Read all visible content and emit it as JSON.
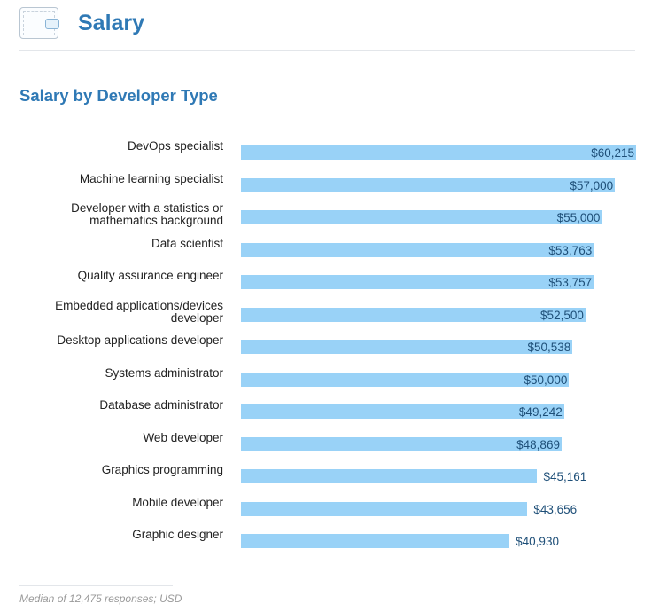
{
  "header": {
    "title": "Salary",
    "icon": "wallet-icon"
  },
  "chart_data": {
    "type": "bar",
    "orientation": "horizontal",
    "title": "Salary by Developer Type",
    "categories": [
      "DevOps specialist",
      "Machine learning specialist",
      "Developer with a statistics or mathematics background",
      "Data scientist",
      "Quality assurance engineer",
      "Embedded applications/devices developer",
      "Desktop applications developer",
      "Systems administrator",
      "Database administrator",
      "Web developer",
      "Graphics programming",
      "Mobile developer",
      "Graphic designer"
    ],
    "values": [
      60215,
      57000,
      55000,
      53763,
      53757,
      52500,
      50538,
      50000,
      49242,
      48869,
      45161,
      43656,
      40930
    ],
    "value_labels": [
      "$60,215",
      "$57,000",
      "$55,000",
      "$53,763",
      "$53,757",
      "$52,500",
      "$50,538",
      "$50,000",
      "$49,242",
      "$48,869",
      "$45,161",
      "$43,656",
      "$40,930"
    ],
    "xlim": [
      0,
      60215
    ],
    "grid": false,
    "bar_color": "#99d2f7"
  },
  "footer": {
    "note": "Median of 12,475 responses; USD"
  }
}
